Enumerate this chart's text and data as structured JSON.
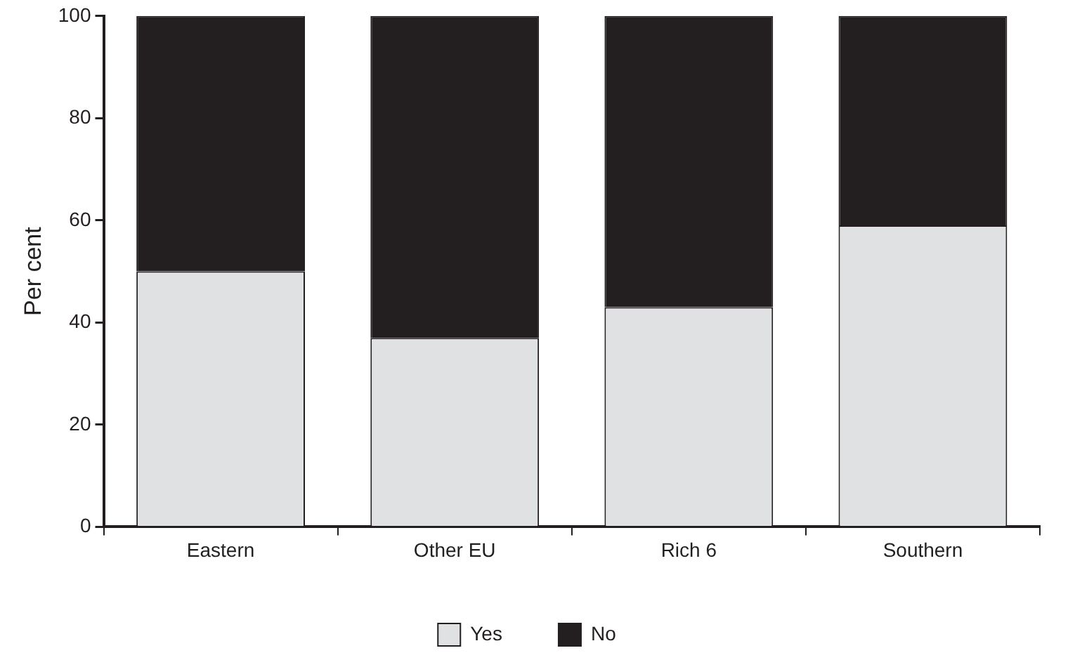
{
  "chart_data": {
    "type": "bar",
    "ylabel": "Per cent",
    "categories": [
      "Eastern",
      "Other EU",
      "Rich 6",
      "Southern"
    ],
    "stacked": true,
    "series": [
      {
        "name": "Yes",
        "color": "#e0e1e3",
        "values": [
          50,
          37,
          43,
          59
        ]
      },
      {
        "name": "No",
        "color": "#231f20",
        "values": [
          50,
          63,
          57,
          41
        ]
      }
    ],
    "ylim": [
      0,
      100
    ],
    "yticks": [
      0,
      20,
      40,
      60,
      80,
      100
    ],
    "grid": false,
    "legend": "bottom"
  }
}
